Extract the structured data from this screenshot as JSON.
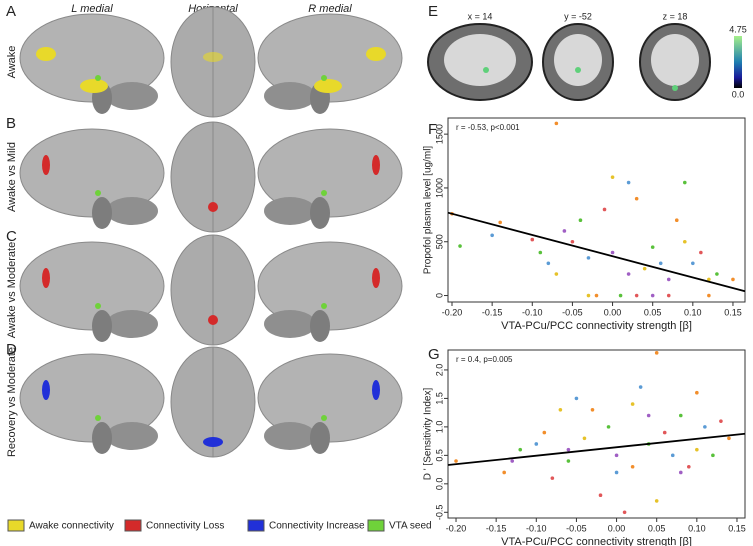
{
  "panels": [
    "A",
    "B",
    "C",
    "D",
    "E",
    "F",
    "G"
  ],
  "columns": [
    "L medial",
    "Horizontal",
    "R medial"
  ],
  "rows": [
    "Awake",
    "Awake vs Mild",
    "Awake vs Moderate",
    "Recovery vs Moderate"
  ],
  "legend": [
    {
      "label": "Awake connectivity",
      "color": "#e8d92a"
    },
    {
      "label": "Connectivity Loss",
      "color": "#d42a2a"
    },
    {
      "label": "Connectivity Increase",
      "color": "#2130d8"
    },
    {
      "label": "VTA seed",
      "color": "#6fd23a"
    }
  ],
  "slices": [
    "x = 14",
    "y = -52",
    "z = 18"
  ],
  "colorbar": [
    "4.75",
    "0.0"
  ],
  "chart_data": [
    {
      "type": "scatter",
      "annotation": "r = -0.53,  p<0.001",
      "xlabel": "VTA-PCu/PCC connectivity strength [β]",
      "ylabel": "Propofol plasma level [ug/ml]",
      "xlim": [
        -0.205,
        0.165
      ],
      "ylim": [
        -60,
        1650
      ],
      "xticks": [
        {
          "value": -0.2,
          "label": "-0.20"
        },
        -0.15,
        {
          "value": -0.1,
          "label": "-0.10"
        },
        -0.05,
        {
          "value": 0,
          "label": "0.00"
        },
        0.05,
        {
          "value": 0.1,
          "label": "0.10"
        },
        0.15
      ],
      "yticks": [
        0,
        500,
        1000,
        1500
      ],
      "series": [
        {
          "color": "#f28e2b",
          "x": [
            -0.2,
            -0.14,
            -0.07,
            -0.02,
            0.03,
            0.08,
            0.12,
            0.15
          ],
          "y": [
            760,
            680,
            1600,
            0,
            900,
            700,
            0,
            150
          ]
        },
        {
          "color": "#59c13b",
          "x": [
            -0.19,
            -0.09,
            -0.04,
            0.01,
            0.05,
            0.09,
            0.13
          ],
          "y": [
            460,
            400,
            700,
            0,
            450,
            1050,
            200
          ]
        },
        {
          "color": "#5b9bd5",
          "x": [
            -0.15,
            -0.08,
            -0.03,
            0.02,
            0.06,
            0.1
          ],
          "y": [
            560,
            300,
            350,
            1050,
            300,
            300
          ]
        },
        {
          "color": "#e15759",
          "x": [
            -0.1,
            -0.05,
            -0.01,
            0.03,
            0.07,
            0.11
          ],
          "y": [
            520,
            500,
            800,
            0,
            0,
            400
          ]
        },
        {
          "color": "#e6c229",
          "x": [
            -0.07,
            -0.03,
            0.0,
            0.04,
            0.09,
            0.12
          ],
          "y": [
            200,
            0,
            1100,
            250,
            500,
            150
          ]
        },
        {
          "color": "#a05fc4",
          "x": [
            -0.06,
            0.0,
            0.02,
            0.05,
            0.07
          ],
          "y": [
            600,
            400,
            200,
            0,
            150
          ]
        }
      ],
      "fit": {
        "color": "#000000",
        "x": [
          -0.205,
          0.165
        ],
        "y": [
          770,
          40
        ]
      }
    },
    {
      "type": "scatter",
      "annotation": "r = 0.4,  p=0.005",
      "xlabel": "VTA-PCu/PCC connectivity strength [β]",
      "ylabel": "D ' [Sensitivity Index]",
      "xlim": [
        -0.21,
        0.16
      ],
      "ylim": [
        -0.6,
        2.35
      ],
      "xticks": [
        {
          "value": -0.2,
          "label": "-0.20"
        },
        -0.15,
        {
          "value": -0.1,
          "label": "-0.10"
        },
        -0.05,
        {
          "value": 0,
          "label": "0.00"
        },
        0.05,
        {
          "value": 0.1,
          "label": "0.10"
        },
        0.15
      ],
      "yticks": [
        -0.5,
        {
          "value": 0,
          "label": "0.0"
        },
        0.5,
        {
          "value": 1,
          "label": "1.0"
        },
        1.5,
        {
          "value": 2,
          "label": "2.0"
        }
      ],
      "series": [
        {
          "color": "#f28e2b",
          "x": [
            -0.2,
            -0.14,
            -0.09,
            -0.03,
            0.02,
            0.05,
            0.1,
            0.14
          ],
          "y": [
            0.4,
            0.2,
            0.9,
            1.3,
            0.3,
            2.3,
            1.6,
            0.8
          ]
        },
        {
          "color": "#59c13b",
          "x": [
            -0.12,
            -0.06,
            -0.01,
            0.04,
            0.08,
            0.12
          ],
          "y": [
            0.6,
            0.4,
            1.0,
            0.7,
            1.2,
            0.5
          ]
        },
        {
          "color": "#5b9bd5",
          "x": [
            -0.1,
            -0.05,
            0.0,
            0.03,
            0.07,
            0.11
          ],
          "y": [
            0.7,
            1.5,
            0.2,
            1.7,
            0.5,
            1.0
          ]
        },
        {
          "color": "#e15759",
          "x": [
            -0.08,
            -0.02,
            0.01,
            0.06,
            0.09,
            0.13
          ],
          "y": [
            0.1,
            -0.2,
            -0.5,
            0.9,
            0.3,
            1.1
          ]
        },
        {
          "color": "#e6c229",
          "x": [
            -0.07,
            -0.04,
            0.02,
            0.05,
            0.1
          ],
          "y": [
            1.3,
            0.8,
            1.4,
            -0.3,
            0.6
          ]
        },
        {
          "color": "#a05fc4",
          "x": [
            -0.13,
            -0.06,
            0.0,
            0.04,
            0.08
          ],
          "y": [
            0.4,
            0.6,
            0.5,
            1.2,
            0.2
          ]
        }
      ],
      "fit": {
        "color": "#000000",
        "x": [
          -0.21,
          0.16
        ],
        "y": [
          0.33,
          0.88
        ]
      }
    }
  ]
}
